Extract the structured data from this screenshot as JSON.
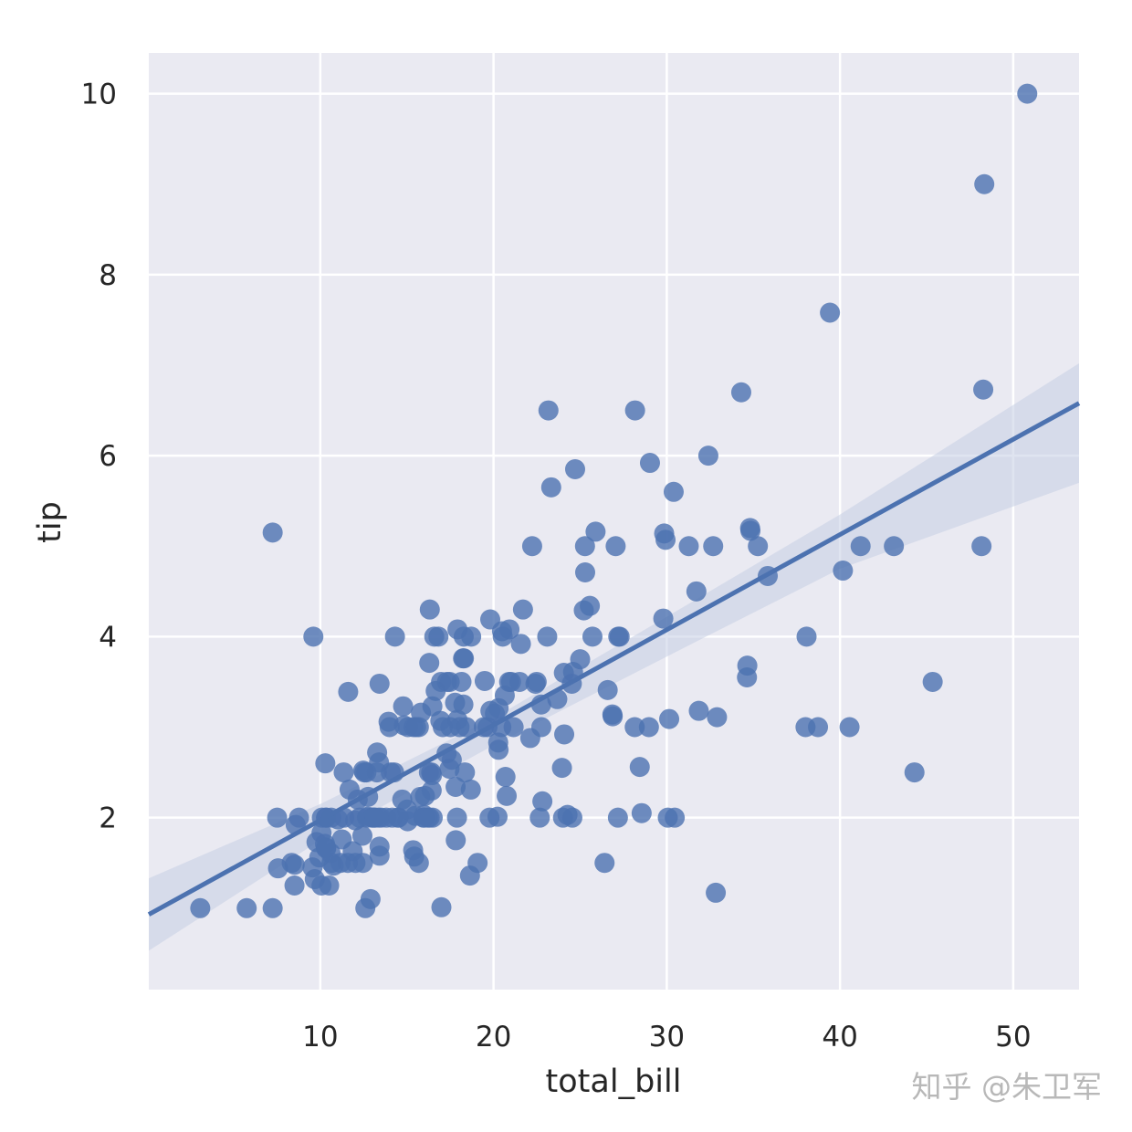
{
  "chart_data": {
    "type": "scatter",
    "xlabel": "total_bill",
    "ylabel": "tip",
    "xlim": [
      0.1,
      53.8
    ],
    "ylim": [
      0.1,
      10.45
    ],
    "xticks": [
      10,
      20,
      30,
      40,
      50
    ],
    "yticks": [
      2,
      4,
      6,
      8,
      10
    ],
    "grid": true,
    "colors": {
      "background": "#eaeaf2",
      "grid": "#ffffff",
      "points": "#4c72b0",
      "regression_line": "#4c72b0",
      "confidence_band": "#c5cde4"
    },
    "regression": {
      "x": [
        0.1,
        53.8
      ],
      "y": [
        0.93,
        6.58
      ]
    },
    "confidence_band": {
      "x": [
        0.1,
        10,
        20,
        30,
        40,
        53.8
      ],
      "upper": [
        1.33,
        2.15,
        3.1,
        4.22,
        5.35,
        7.02
      ],
      "lower": [
        0.53,
        1.75,
        2.8,
        3.78,
        4.75,
        5.7
      ]
    },
    "points": [
      [
        3.07,
        1.0
      ],
      [
        5.75,
        1.0
      ],
      [
        7.25,
        1.0
      ],
      [
        7.25,
        5.15
      ],
      [
        7.51,
        2.0
      ],
      [
        7.56,
        1.44
      ],
      [
        8.35,
        1.5
      ],
      [
        8.51,
        1.25
      ],
      [
        8.52,
        1.48
      ],
      [
        8.58,
        1.92
      ],
      [
        8.77,
        2.0
      ],
      [
        9.55,
        1.45
      ],
      [
        9.6,
        4.0
      ],
      [
        9.68,
        1.32
      ],
      [
        9.78,
        1.73
      ],
      [
        9.94,
        1.56
      ],
      [
        10.07,
        1.25
      ],
      [
        10.07,
        1.83
      ],
      [
        10.09,
        2.0
      ],
      [
        10.27,
        1.71
      ],
      [
        10.29,
        2.6
      ],
      [
        10.33,
        1.67
      ],
      [
        10.33,
        2.0
      ],
      [
        10.34,
        1.66
      ],
      [
        10.34,
        2.0
      ],
      [
        10.51,
        1.25
      ],
      [
        10.59,
        1.61
      ],
      [
        10.63,
        2.0
      ],
      [
        10.65,
        1.5
      ],
      [
        10.77,
        1.47
      ],
      [
        11.02,
        1.98
      ],
      [
        11.17,
        1.5
      ],
      [
        11.24,
        1.76
      ],
      [
        11.35,
        2.5
      ],
      [
        11.38,
        2.0
      ],
      [
        11.59,
        1.5
      ],
      [
        11.61,
        3.39
      ],
      [
        11.69,
        2.31
      ],
      [
        11.87,
        1.63
      ],
      [
        12.02,
        1.97
      ],
      [
        12.03,
        1.5
      ],
      [
        12.16,
        2.2
      ],
      [
        12.26,
        2.0
      ],
      [
        12.43,
        1.8
      ],
      [
        12.46,
        1.5
      ],
      [
        12.48,
        2.52
      ],
      [
        12.54,
        2.5
      ],
      [
        12.6,
        1.0
      ],
      [
        12.66,
        2.5
      ],
      [
        12.69,
        2.0
      ],
      [
        12.74,
        2.01
      ],
      [
        12.76,
        2.23
      ],
      [
        12.9,
        1.1
      ],
      [
        13.0,
        2.0
      ],
      [
        13.03,
        2.0
      ],
      [
        13.13,
        2.0
      ],
      [
        13.16,
        2.0
      ],
      [
        13.27,
        2.5
      ],
      [
        13.28,
        2.72
      ],
      [
        13.37,
        2.0
      ],
      [
        13.39,
        2.61
      ],
      [
        13.42,
        1.58
      ],
      [
        13.42,
        3.48
      ],
      [
        13.42,
        1.68
      ],
      [
        13.51,
        2.0
      ],
      [
        13.81,
        2.0
      ],
      [
        13.94,
        3.06
      ],
      [
        14.0,
        3.0
      ],
      [
        14.07,
        2.5
      ],
      [
        14.15,
        2.0
      ],
      [
        14.26,
        2.5
      ],
      [
        14.31,
        4.0
      ],
      [
        14.48,
        2.0
      ],
      [
        14.52,
        2.0
      ],
      [
        14.73,
        2.2
      ],
      [
        14.78,
        3.23
      ],
      [
        14.83,
        3.02
      ],
      [
        15.01,
        2.09
      ],
      [
        15.04,
        1.96
      ],
      [
        15.06,
        3.0
      ],
      [
        15.36,
        1.64
      ],
      [
        15.38,
        3.0
      ],
      [
        15.42,
        1.57
      ],
      [
        15.48,
        2.02
      ],
      [
        15.53,
        3.0
      ],
      [
        15.69,
        1.5
      ],
      [
        15.69,
        3.0
      ],
      [
        15.77,
        2.23
      ],
      [
        15.81,
        3.16
      ],
      [
        15.95,
        2.0
      ],
      [
        15.98,
        2.03
      ],
      [
        16.0,
        2.0
      ],
      [
        16.04,
        2.24
      ],
      [
        16.21,
        2.0
      ],
      [
        16.27,
        2.5
      ],
      [
        16.29,
        3.71
      ],
      [
        16.31,
        2.0
      ],
      [
        16.32,
        4.3
      ],
      [
        16.4,
        2.5
      ],
      [
        16.43,
        2.3
      ],
      [
        16.45,
        2.47
      ],
      [
        16.47,
        3.23
      ],
      [
        16.49,
        2.0
      ],
      [
        16.58,
        4.0
      ],
      [
        16.66,
        3.4
      ],
      [
        16.82,
        4.0
      ],
      [
        16.93,
        3.07
      ],
      [
        16.97,
        3.5
      ],
      [
        16.99,
        1.01
      ],
      [
        17.07,
        3.0
      ],
      [
        17.29,
        2.71
      ],
      [
        17.31,
        3.5
      ],
      [
        17.46,
        2.54
      ],
      [
        17.47,
        3.5
      ],
      [
        17.51,
        3.0
      ],
      [
        17.59,
        2.64
      ],
      [
        17.78,
        3.27
      ],
      [
        17.81,
        2.34
      ],
      [
        17.82,
        1.75
      ],
      [
        17.89,
        2.0
      ],
      [
        17.92,
        3.08
      ],
      [
        17.92,
        4.08
      ],
      [
        18.04,
        3.0
      ],
      [
        18.15,
        3.5
      ],
      [
        18.24,
        3.76
      ],
      [
        18.26,
        3.25
      ],
      [
        18.28,
        4.0
      ],
      [
        18.29,
        3.76
      ],
      [
        18.35,
        2.5
      ],
      [
        18.43,
        3.0
      ],
      [
        18.64,
        1.36
      ],
      [
        18.69,
        2.31
      ],
      [
        18.71,
        4.0
      ],
      [
        19.08,
        1.5
      ],
      [
        19.44,
        3.0
      ],
      [
        19.49,
        3.51
      ],
      [
        19.65,
        3.0
      ],
      [
        19.77,
        2.0
      ],
      [
        19.81,
        4.19
      ],
      [
        19.82,
        3.18
      ],
      [
        20.08,
        3.15
      ],
      [
        20.23,
        2.01
      ],
      [
        20.27,
        2.83
      ],
      [
        20.29,
        2.75
      ],
      [
        20.29,
        3.21
      ],
      [
        20.45,
        3.0
      ],
      [
        20.49,
        4.06
      ],
      [
        20.53,
        4.0
      ],
      [
        20.65,
        3.35
      ],
      [
        20.69,
        2.45
      ],
      [
        20.76,
        2.24
      ],
      [
        20.9,
        3.5
      ],
      [
        20.92,
        4.08
      ],
      [
        21.01,
        3.5
      ],
      [
        21.16,
        3.0
      ],
      [
        21.5,
        3.5
      ],
      [
        21.58,
        3.92
      ],
      [
        21.7,
        4.3
      ],
      [
        22.12,
        2.88
      ],
      [
        22.23,
        5.0
      ],
      [
        22.42,
        3.48
      ],
      [
        22.49,
        3.5
      ],
      [
        22.67,
        2.0
      ],
      [
        22.75,
        3.25
      ],
      [
        22.76,
        3.0
      ],
      [
        22.82,
        2.18
      ],
      [
        23.1,
        4.0
      ],
      [
        23.17,
        6.5
      ],
      [
        23.33,
        5.65
      ],
      [
        23.68,
        3.31
      ],
      [
        23.95,
        2.55
      ],
      [
        24.01,
        2.0
      ],
      [
        24.06,
        3.6
      ],
      [
        24.08,
        2.92
      ],
      [
        24.27,
        2.03
      ],
      [
        24.52,
        3.48
      ],
      [
        24.55,
        2.0
      ],
      [
        24.59,
        3.61
      ],
      [
        24.71,
        5.85
      ],
      [
        25.0,
        3.75
      ],
      [
        25.21,
        4.29
      ],
      [
        25.28,
        5.0
      ],
      [
        25.29,
        4.71
      ],
      [
        25.56,
        4.34
      ],
      [
        25.71,
        4.0
      ],
      [
        25.89,
        5.16
      ],
      [
        26.41,
        1.5
      ],
      [
        26.59,
        3.41
      ],
      [
        26.86,
        3.14
      ],
      [
        26.88,
        3.12
      ],
      [
        27.05,
        5.0
      ],
      [
        27.18,
        2.0
      ],
      [
        27.2,
        4.0
      ],
      [
        27.28,
        4.0
      ],
      [
        28.15,
        3.0
      ],
      [
        28.17,
        6.5
      ],
      [
        28.44,
        2.56
      ],
      [
        28.55,
        2.05
      ],
      [
        28.97,
        3.0
      ],
      [
        29.03,
        5.92
      ],
      [
        29.8,
        4.2
      ],
      [
        29.85,
        5.14
      ],
      [
        29.93,
        5.07
      ],
      [
        30.06,
        2.0
      ],
      [
        30.14,
        3.09
      ],
      [
        30.4,
        5.6
      ],
      [
        30.46,
        2.0
      ],
      [
        31.27,
        5.0
      ],
      [
        31.71,
        4.5
      ],
      [
        31.85,
        3.18
      ],
      [
        32.4,
        6.0
      ],
      [
        32.68,
        5.0
      ],
      [
        32.83,
        1.17
      ],
      [
        32.9,
        3.11
      ],
      [
        34.3,
        6.7
      ],
      [
        34.63,
        3.55
      ],
      [
        34.65,
        3.68
      ],
      [
        34.81,
        5.2
      ],
      [
        34.83,
        5.17
      ],
      [
        35.26,
        5.0
      ],
      [
        35.83,
        4.67
      ],
      [
        38.01,
        3.0
      ],
      [
        38.07,
        4.0
      ],
      [
        38.73,
        3.0
      ],
      [
        39.42,
        7.58
      ],
      [
        40.17,
        4.73
      ],
      [
        40.55,
        3.0
      ],
      [
        41.19,
        5.0
      ],
      [
        43.11,
        5.0
      ],
      [
        44.3,
        2.5
      ],
      [
        45.35,
        3.5
      ],
      [
        48.17,
        5.0
      ],
      [
        48.27,
        6.73
      ],
      [
        48.33,
        9.0
      ],
      [
        50.81,
        10.0
      ]
    ]
  },
  "watermark": "知乎 @朱卫军"
}
